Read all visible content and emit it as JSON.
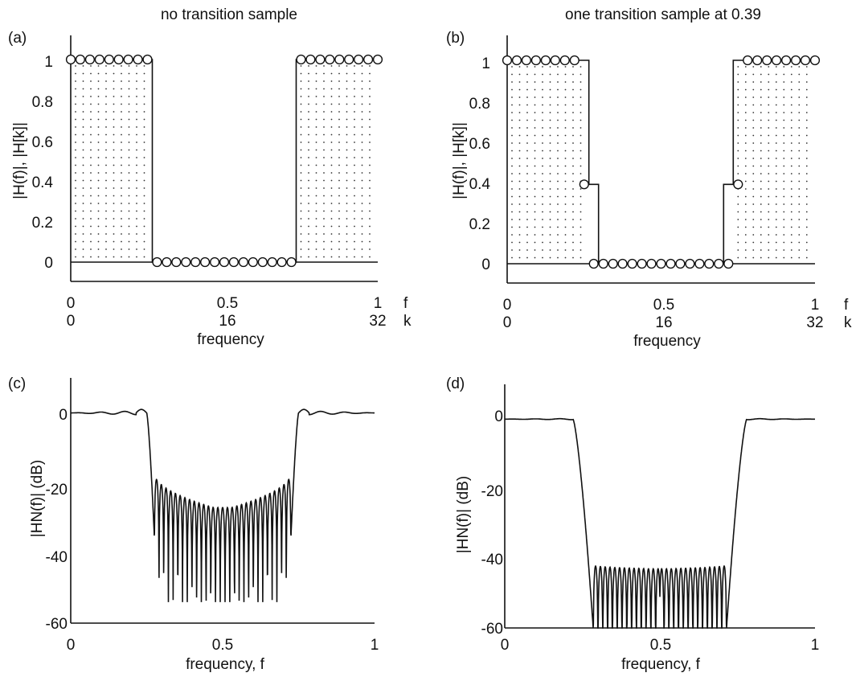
{
  "chart_data": [
    {
      "panel": "(a)",
      "title": "no transition sample",
      "type": "line",
      "ylabel": "|H(f)|,  |H[k]|",
      "xlabel": "frequency",
      "x_axis_rows": [
        {
          "ticks": [
            "0",
            "0.5",
            "1"
          ],
          "unit": "f"
        },
        {
          "ticks": [
            "0",
            "16",
            "32"
          ],
          "unit": "k"
        }
      ],
      "ylim": [
        -0.1,
        1.1
      ],
      "yticks": [
        "0",
        "0.2",
        "0.4",
        "0.6",
        "0.8",
        "1"
      ],
      "xlim": [
        0,
        1
      ],
      "series": [
        {
          "kind": "ideal-response",
          "x": [
            0,
            0.2656,
            0.2656,
            0.7344,
            0.7344,
            1
          ],
          "y": [
            1,
            1,
            0,
            0,
            1,
            1
          ]
        },
        {
          "kind": "samples",
          "k": [
            0,
            1,
            2,
            3,
            4,
            5,
            6,
            7,
            8,
            9,
            10,
            11,
            12,
            13,
            14,
            15,
            16,
            17,
            18,
            19,
            20,
            21,
            22,
            23,
            24,
            25,
            26,
            27,
            28,
            29,
            30,
            31,
            32
          ],
          "H": [
            1,
            1,
            1,
            1,
            1,
            1,
            1,
            1,
            1,
            0,
            0,
            0,
            0,
            0,
            0,
            0,
            0,
            0,
            0,
            0,
            0,
            0,
            0,
            0,
            1,
            1,
            1,
            1,
            1,
            1,
            1,
            1,
            1
          ]
        }
      ]
    },
    {
      "panel": "(b)",
      "title": "one transition sample at 0.39",
      "type": "line",
      "ylabel": "|H(f)|, |H[k]|",
      "xlabel": "frequency",
      "x_axis_rows": [
        {
          "ticks": [
            "0",
            "0.5",
            "1"
          ],
          "unit": "f"
        },
        {
          "ticks": [
            "0",
            "16",
            "32"
          ],
          "unit": "k"
        }
      ],
      "ylim": [
        -0.1,
        1.1
      ],
      "yticks": [
        "0",
        "0.2",
        "0.4",
        "0.6",
        "0.8",
        "1"
      ],
      "xlim": [
        0,
        1
      ],
      "series": [
        {
          "kind": "ideal-response",
          "x": [
            0,
            0.2656,
            0.2656,
            0.2969,
            0.2969,
            0.7031,
            0.7031,
            0.7344,
            0.7344,
            1
          ],
          "y": [
            1,
            1,
            0.39,
            0.39,
            0,
            0,
            0.39,
            0.39,
            1,
            1
          ]
        },
        {
          "kind": "samples",
          "k": [
            0,
            1,
            2,
            3,
            4,
            5,
            6,
            7,
            8,
            9,
            10,
            11,
            12,
            13,
            14,
            15,
            16,
            17,
            18,
            19,
            20,
            21,
            22,
            23,
            24,
            25,
            26,
            27,
            28,
            29,
            30,
            31,
            32
          ],
          "H": [
            1,
            1,
            1,
            1,
            1,
            1,
            1,
            1,
            0.39,
            0,
            0,
            0,
            0,
            0,
            0,
            0,
            0,
            0,
            0,
            0,
            0,
            0,
            0,
            0,
            0.39,
            1,
            1,
            1,
            1,
            1,
            1,
            1,
            1
          ]
        }
      ]
    },
    {
      "panel": "(c)",
      "type": "line",
      "ylabel": "|HN(f)|  (dB)",
      "xlabel": "frequency, f",
      "xticks": [
        "0",
        "0.5",
        "1"
      ],
      "yticks": [
        "-60",
        "-40",
        "-20",
        "0"
      ],
      "xlim": [
        0,
        1
      ],
      "ylim": [
        -60,
        10
      ],
      "series": [
        {
          "kind": "magnitude-dB",
          "passband_edge": 0.25,
          "stopband_edge": 0.275,
          "stopband_peak_center": -27,
          "stopband_peak_edge": -17,
          "stopband_null_depth": -54
        }
      ]
    },
    {
      "panel": "(d)",
      "type": "line",
      "ylabel": "|HN(f)| (dB)",
      "xlabel": "frequency, f",
      "xticks": [
        "0",
        "0.5",
        "1"
      ],
      "yticks": [
        "-60",
        "-40",
        "-20",
        "0"
      ],
      "xlim": [
        0,
        1
      ],
      "ylim": [
        -60,
        10
      ],
      "series": [
        {
          "kind": "magnitude-dB",
          "passband_edge": 0.22,
          "stopband_edge": 0.285,
          "stopband_peak_center": -43,
          "stopband_peak_edge": -42,
          "stopband_null_depth": -60
        }
      ]
    }
  ]
}
